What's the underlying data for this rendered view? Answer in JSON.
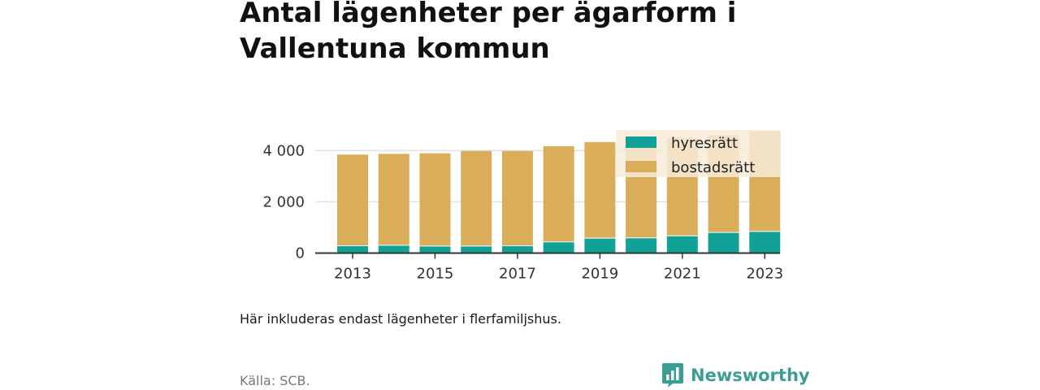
{
  "title": "Antal lägenheter per ägarform i Vallentuna kommun",
  "note": "Här inkluderas endast lägenheter i flerfamiljshus.",
  "source": "Källa: SCB.",
  "brand": "Newsworthy",
  "colors": {
    "hyresratt": "#12a196",
    "bostadsratt": "#d9ad5a",
    "grid": "#dddddd",
    "axis": "#333333",
    "legend_bg": "#f7ebd8",
    "brand": "#3a9e97"
  },
  "chart_data": {
    "type": "bar",
    "stacked": true,
    "categories": [
      "2013",
      "2014",
      "2015",
      "2016",
      "2017",
      "2018",
      "2019",
      "2020",
      "2021",
      "2022",
      "2023"
    ],
    "series": [
      {
        "name": "hyresrätt",
        "values": [
          300,
          320,
          290,
          290,
          300,
          450,
          600,
          610,
          690,
          820,
          860
        ]
      },
      {
        "name": "bostadsrätt",
        "values": [
          3540,
          3550,
          3600,
          3690,
          3680,
          3720,
          3730,
          3810,
          3810,
          3780,
          3880
        ]
      }
    ],
    "x_tick_labels": [
      "2013",
      "2015",
      "2017",
      "2019",
      "2021",
      "2023"
    ],
    "y_ticks": [
      0,
      2000,
      4000
    ],
    "y_tick_labels": [
      "0",
      "2 000",
      "4 000"
    ],
    "ylim": [
      0,
      4800
    ],
    "grid": true,
    "legend_position": "top-right",
    "xlabel": "",
    "ylabel": ""
  }
}
